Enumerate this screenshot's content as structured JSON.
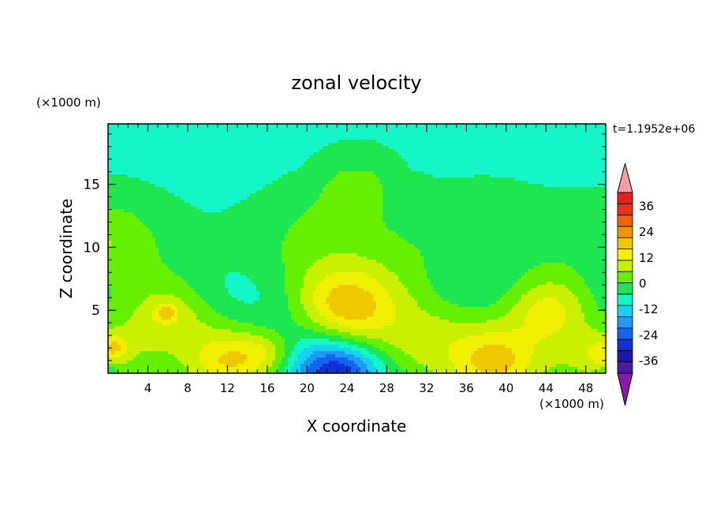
{
  "chart_data": {
    "type": "heatmap",
    "title": "zonal velocity",
    "xlabel": "X coordinate",
    "ylabel": "Z coordinate",
    "x_unit": "(×1000 m)",
    "y_unit": "(×1000 m)",
    "time_label": "t=1.1952e+06",
    "xlim": [
      0,
      50
    ],
    "ylim": [
      0,
      19.8
    ],
    "x_ticks": [
      "4",
      "8",
      "12",
      "16",
      "20",
      "24",
      "28",
      "32",
      "36",
      "40",
      "44",
      "48"
    ],
    "y_ticks": [
      "5",
      "10",
      "15"
    ],
    "colorbar": {
      "tick_labels": [
        "36",
        "24",
        "12",
        "0",
        "-12",
        "-24",
        "-36"
      ],
      "levels": [
        -42,
        -36,
        -30,
        -24,
        -18,
        -12,
        -6,
        0,
        6,
        12,
        18,
        24,
        30,
        36,
        42
      ],
      "colors": [
        "#8c1aa8",
        "#4b1aa0",
        "#1e18a8",
        "#1032d8",
        "#1464f0",
        "#1e9bf0",
        "#14d2f0",
        "#14f5c8",
        "#1ee650",
        "#64f000",
        "#c8f000",
        "#f0f000",
        "#f0c800",
        "#f09600",
        "#f06400",
        "#f03214",
        "#e61e1e",
        "#f0a0a0"
      ]
    },
    "cells": [
      [
        0,
        0,
        2,
        -1.2
      ],
      [
        50,
        0,
        2,
        -1.2
      ],
      [
        0,
        3,
        18,
        0.3
      ],
      [
        0,
        8.5,
        10,
        0.9
      ],
      [
        0,
        11.5,
        14,
        0.9
      ],
      [
        0,
        11,
        8,
        0.7
      ],
      [
        20,
        11.5,
        12,
        0.8
      ],
      [
        38,
        12,
        14,
        0.7
      ],
      [
        50,
        11,
        12,
        0.8
      ],
      [
        28,
        9,
        14,
        0.6
      ],
      [
        25,
        14.5,
        8,
        0.6
      ],
      [
        25,
        16,
        10,
        0.9
      ],
      [
        0,
        6.5,
        10,
        -0.8
      ],
      [
        10,
        6,
        10,
        -0.8
      ],
      [
        15,
        5.5,
        10,
        -0.9
      ],
      [
        35,
        6,
        10,
        -0.9
      ],
      [
        39,
        6.5,
        10,
        -0.8
      ],
      [
        50,
        7,
        10,
        -0.7
      ],
      [
        6,
        4.5,
        14,
        1.2
      ],
      [
        6,
        4.8,
        8,
        1.4
      ],
      [
        5.8,
        4.8,
        2,
        2.2
      ],
      [
        23,
        5,
        20,
        1.4
      ],
      [
        23,
        6,
        10,
        1.3
      ],
      [
        24,
        5,
        9,
        2.5
      ],
      [
        29.5,
        2.5,
        13,
        1.2
      ],
      [
        34,
        3,
        14,
        1.2
      ],
      [
        38,
        1.2,
        13,
        1.3
      ],
      [
        39,
        0.8,
        7,
        2.2
      ],
      [
        11.5,
        1.5,
        14,
        1.1
      ],
      [
        12,
        0.8,
        7,
        2.2
      ],
      [
        14.5,
        1.8,
        8,
        1.0
      ],
      [
        16,
        1.5,
        5,
        1.4
      ],
      [
        44.5,
        5,
        14,
        1.3
      ],
      [
        44.5,
        5.2,
        8,
        2.0
      ],
      [
        49,
        2,
        10,
        1.2
      ],
      [
        50,
        1.5,
        5,
        1.8
      ],
      [
        0,
        2,
        8,
        1.4
      ],
      [
        0.5,
        2,
        3,
        2.2
      ],
      [
        23,
        0,
        20,
        -2.0
      ],
      [
        23,
        0,
        8,
        -4.5
      ],
      [
        3,
        1,
        12,
        -0.4
      ],
      [
        20,
        2.5,
        10,
        -0.5
      ],
      [
        48,
        4,
        8,
        -0.6
      ]
    ]
  }
}
